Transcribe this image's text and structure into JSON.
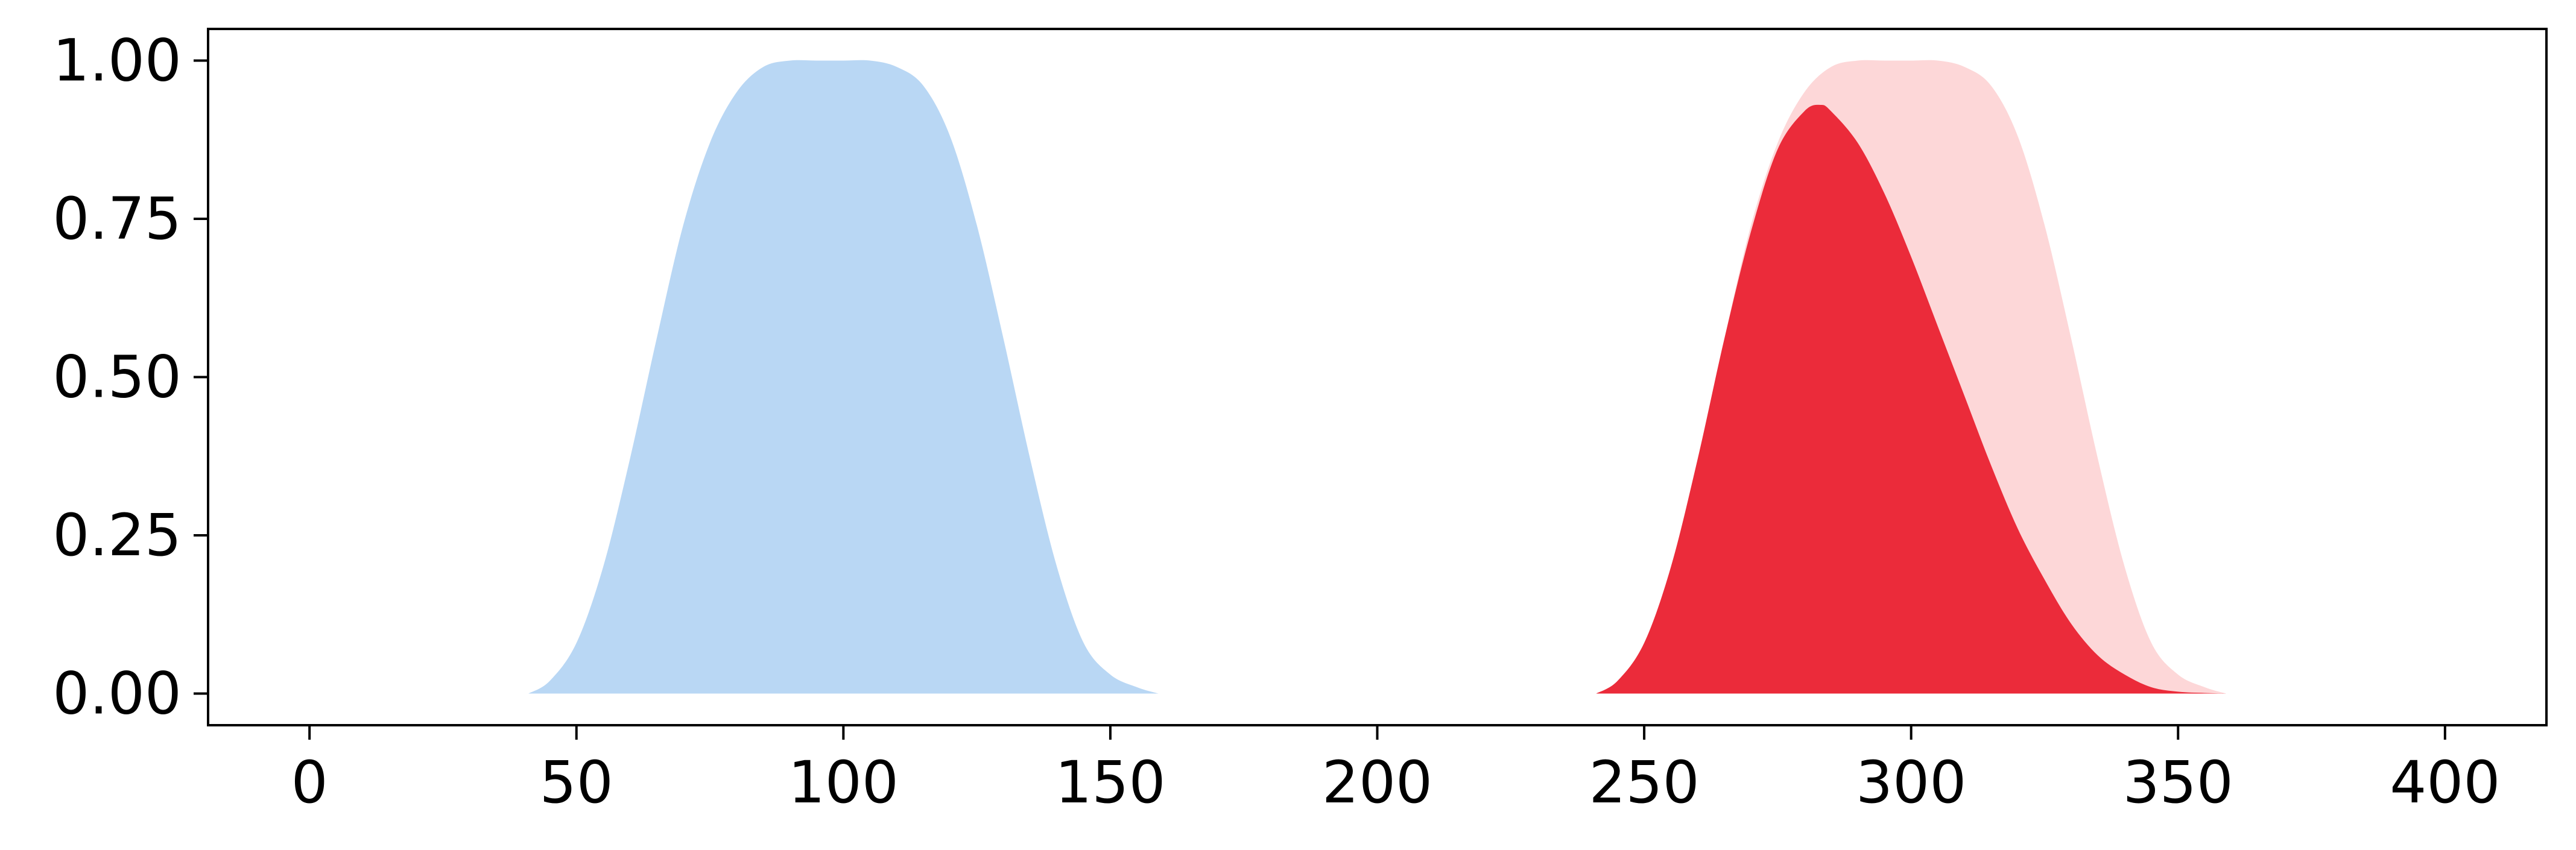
{
  "chart_data": {
    "type": "area",
    "title": "",
    "xlabel": "",
    "ylabel": "",
    "xlim": [
      -19,
      419
    ],
    "ylim": [
      -0.05,
      1.05
    ],
    "grid": false,
    "legend": "none",
    "x_ticks": [
      0,
      50,
      100,
      150,
      200,
      250,
      300,
      350,
      400
    ],
    "x_tick_labels": [
      "0",
      "50",
      "100",
      "150",
      "200",
      "250",
      "300",
      "350",
      "400"
    ],
    "y_ticks": [
      0,
      0.25,
      0.5,
      0.75,
      1.0
    ],
    "y_tick_labels": [
      "0.00",
      "0.25",
      "0.50",
      "0.75",
      "1.00"
    ],
    "series": [
      {
        "color": "#b9d7f4",
        "x": [
          41,
          45,
          50,
          55,
          60,
          65,
          70,
          75,
          80,
          85,
          90,
          95,
          100,
          105,
          110,
          115,
          120,
          125,
          130,
          135,
          140,
          145,
          150,
          155,
          159
        ],
        "y": [
          0.0,
          0.02,
          0.08,
          0.2,
          0.37,
          0.56,
          0.74,
          0.87,
          0.95,
          0.99,
          1.0,
          1.0,
          1.0,
          1.0,
          0.99,
          0.96,
          0.88,
          0.74,
          0.56,
          0.37,
          0.2,
          0.08,
          0.03,
          0.01,
          0.0
        ]
      },
      {
        "color": "#fdd7d8",
        "x": [
          241,
          245,
          250,
          255,
          260,
          265,
          270,
          275,
          280,
          285,
          290,
          295,
          300,
          305,
          310,
          315,
          320,
          325,
          330,
          335,
          340,
          345,
          350,
          355,
          359
        ],
        "y": [
          0.0,
          0.02,
          0.08,
          0.2,
          0.37,
          0.56,
          0.74,
          0.87,
          0.95,
          0.99,
          1.0,
          1.0,
          1.0,
          1.0,
          0.99,
          0.96,
          0.88,
          0.74,
          0.56,
          0.37,
          0.2,
          0.08,
          0.03,
          0.01,
          0.0
        ]
      },
      {
        "color": "#eb2b3a",
        "x": [
          241,
          245,
          250,
          255,
          260,
          265,
          270,
          275,
          280,
          283,
          285,
          290,
          295,
          300,
          305,
          310,
          315,
          320,
          325,
          330,
          335,
          340,
          345,
          350,
          355,
          359
        ],
        "y": [
          0.0,
          0.02,
          0.08,
          0.2,
          0.37,
          0.56,
          0.73,
          0.86,
          0.92,
          0.93,
          0.92,
          0.87,
          0.79,
          0.69,
          0.58,
          0.47,
          0.36,
          0.26,
          0.18,
          0.11,
          0.06,
          0.03,
          0.01,
          0.003,
          0.001,
          0.0
        ]
      }
    ]
  }
}
